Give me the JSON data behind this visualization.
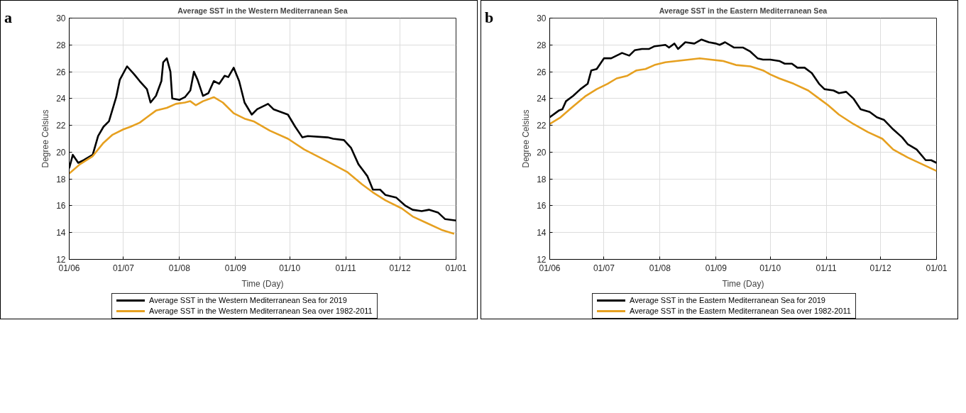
{
  "chart_data": [
    {
      "type": "line",
      "title": "Average SST in the Western Mediterranean Sea",
      "xlabel": "Time (Day)",
      "ylabel": "Degree Celsius",
      "annotations": [
        "a"
      ],
      "xlim": [
        "2019-06-01",
        "2020-01-01"
      ],
      "xticks": [
        {
          "value": "2019-06-01",
          "label": "01/06"
        },
        {
          "value": "2019-07-01",
          "label": "01/07"
        },
        {
          "value": "2019-08-01",
          "label": "01/08"
        },
        {
          "value": "2019-09-01",
          "label": "01/09"
        },
        {
          "value": "2019-10-01",
          "label": "01/10"
        },
        {
          "value": "2019-11-01",
          "label": "01/11"
        },
        {
          "value": "2019-12-01",
          "label": "01/12"
        },
        {
          "value": "2020-01-01",
          "label": "01/01"
        }
      ],
      "ylim": [
        12,
        30
      ],
      "yticks": [
        12,
        14,
        16,
        18,
        20,
        22,
        24,
        26,
        28,
        30
      ],
      "grid": true,
      "legend": "bottom",
      "line_style": "solid",
      "series": [
        {
          "name": "Average SST in the Western Mediterranean Sea for 2019",
          "color": "#000000",
          "x": [
            "2019-06-01",
            "2019-06-03",
            "2019-06-06",
            "2019-06-09",
            "2019-06-14",
            "2019-06-17",
            "2019-06-20",
            "2019-06-23",
            "2019-06-25",
            "2019-06-27",
            "2019-06-29",
            "2019-07-03",
            "2019-07-07",
            "2019-07-10",
            "2019-07-14",
            "2019-07-16",
            "2019-07-19",
            "2019-07-22",
            "2019-07-23",
            "2019-07-25",
            "2019-07-27",
            "2019-07-28",
            "2019-08-01",
            "2019-08-04",
            "2019-08-07",
            "2019-08-09",
            "2019-08-11",
            "2019-08-14",
            "2019-08-17",
            "2019-08-20",
            "2019-08-23",
            "2019-08-26",
            "2019-08-28",
            "2019-08-31",
            "2019-09-03",
            "2019-09-06",
            "2019-09-10",
            "2019-09-13",
            "2019-09-19",
            "2019-09-22",
            "2019-09-30",
            "2019-10-04",
            "2019-10-08",
            "2019-10-11",
            "2019-10-22",
            "2019-10-25",
            "2019-10-31",
            "2019-11-04",
            "2019-11-08",
            "2019-11-13",
            "2019-11-16",
            "2019-11-20",
            "2019-11-23",
            "2019-11-29",
            "2019-12-04",
            "2019-12-08",
            "2019-12-13",
            "2019-12-17",
            "2019-12-22",
            "2019-12-26",
            "2020-01-01"
          ],
          "values": [
            18.8,
            19.8,
            19.2,
            19.4,
            19.8,
            21.2,
            21.9,
            22.3,
            23.2,
            24.1,
            25.4,
            26.4,
            25.8,
            25.3,
            24.7,
            23.7,
            24.2,
            25.3,
            26.7,
            27.0,
            26.0,
            24.0,
            23.9,
            24.1,
            24.6,
            26.0,
            25.4,
            24.2,
            24.4,
            25.3,
            25.1,
            25.7,
            25.6,
            26.3,
            25.3,
            23.7,
            22.8,
            23.2,
            23.6,
            23.2,
            22.8,
            21.9,
            21.1,
            21.2,
            21.1,
            21.0,
            20.9,
            20.3,
            19.1,
            18.2,
            17.2,
            17.2,
            16.8,
            16.6,
            16.0,
            15.7,
            15.6,
            15.7,
            15.5,
            15.0,
            14.9
          ]
        },
        {
          "name": "Average SST in the Western Mediterranean Sea over 1982-2011",
          "color": "#e6a020",
          "x": [
            "2019-06-01",
            "2019-06-07",
            "2019-06-14",
            "2019-06-20",
            "2019-06-25",
            "2019-07-01",
            "2019-07-05",
            "2019-07-10",
            "2019-07-14",
            "2019-07-19",
            "2019-07-25",
            "2019-07-30",
            "2019-08-04",
            "2019-08-07",
            "2019-08-10",
            "2019-08-14",
            "2019-08-20",
            "2019-08-25",
            "2019-08-31",
            "2019-09-06",
            "2019-09-11",
            "2019-09-20",
            "2019-09-30",
            "2019-10-09",
            "2019-10-22",
            "2019-11-02",
            "2019-11-10",
            "2019-11-16",
            "2019-11-23",
            "2019-12-02",
            "2019-12-08",
            "2019-12-16",
            "2019-12-24",
            "2019-12-31"
          ],
          "values": [
            18.4,
            19.1,
            19.7,
            20.7,
            21.3,
            21.7,
            21.9,
            22.2,
            22.6,
            23.1,
            23.3,
            23.6,
            23.7,
            23.8,
            23.5,
            23.8,
            24.1,
            23.7,
            22.9,
            22.5,
            22.3,
            21.6,
            21.0,
            20.2,
            19.3,
            18.5,
            17.6,
            17.0,
            16.4,
            15.8,
            15.2,
            14.7,
            14.2,
            13.9
          ]
        }
      ]
    },
    {
      "type": "line",
      "title": "Average SST in the Eastern Mediterranean Sea",
      "xlabel": "Time (Day)",
      "ylabel": "Degree Celsius",
      "annotations": [
        "b"
      ],
      "xlim": [
        "2019-06-01",
        "2020-01-01"
      ],
      "xticks": [
        {
          "value": "2019-06-01",
          "label": "01/06"
        },
        {
          "value": "2019-07-01",
          "label": "01/07"
        },
        {
          "value": "2019-08-01",
          "label": "01/08"
        },
        {
          "value": "2019-09-01",
          "label": "01/09"
        },
        {
          "value": "2019-10-01",
          "label": "01/10"
        },
        {
          "value": "2019-11-01",
          "label": "01/11"
        },
        {
          "value": "2019-12-01",
          "label": "01/12"
        },
        {
          "value": "2020-01-01",
          "label": "01/01"
        }
      ],
      "ylim": [
        12,
        30
      ],
      "yticks": [
        12,
        14,
        16,
        18,
        20,
        22,
        24,
        26,
        28,
        30
      ],
      "grid": true,
      "legend": "bottom",
      "line_style": "solid",
      "series": [
        {
          "name": "Average SST in the Eastern Mediterranean Sea for 2019",
          "color": "#000000",
          "x": [
            "2019-06-01",
            "2019-06-06",
            "2019-06-08",
            "2019-06-10",
            "2019-06-14",
            "2019-06-18",
            "2019-06-22",
            "2019-06-24",
            "2019-06-27",
            "2019-07-01",
            "2019-07-05",
            "2019-07-08",
            "2019-07-11",
            "2019-07-15",
            "2019-07-18",
            "2019-07-22",
            "2019-07-26",
            "2019-07-29",
            "2019-08-04",
            "2019-08-06",
            "2019-08-09",
            "2019-08-11",
            "2019-08-15",
            "2019-08-20",
            "2019-08-24",
            "2019-08-28",
            "2019-09-01",
            "2019-09-03",
            "2019-09-06",
            "2019-09-11",
            "2019-09-16",
            "2019-09-20",
            "2019-09-24",
            "2019-09-27",
            "2019-10-01",
            "2019-10-06",
            "2019-10-09",
            "2019-10-13",
            "2019-10-16",
            "2019-10-20",
            "2019-10-24",
            "2019-10-28",
            "2019-10-31",
            "2019-11-05",
            "2019-11-08",
            "2019-11-12",
            "2019-11-16",
            "2019-11-20",
            "2019-11-25",
            "2019-11-29",
            "2019-12-03",
            "2019-12-08",
            "2019-12-13",
            "2019-12-16",
            "2019-12-21",
            "2019-12-26",
            "2019-12-29",
            "2020-01-01"
          ],
          "values": [
            22.6,
            23.1,
            23.2,
            23.8,
            24.2,
            24.7,
            25.1,
            26.1,
            26.2,
            27.0,
            27.0,
            27.2,
            27.4,
            27.2,
            27.6,
            27.7,
            27.7,
            27.9,
            28.0,
            27.8,
            28.1,
            27.7,
            28.2,
            28.1,
            28.4,
            28.2,
            28.1,
            28.0,
            28.2,
            27.8,
            27.8,
            27.5,
            27.0,
            26.9,
            26.9,
            26.8,
            26.6,
            26.6,
            26.3,
            26.3,
            25.9,
            25.1,
            24.7,
            24.6,
            24.4,
            24.5,
            24.0,
            23.2,
            23.0,
            22.6,
            22.4,
            21.7,
            21.1,
            20.6,
            20.2,
            19.4,
            19.4,
            19.2
          ]
        },
        {
          "name": "Average SST in the Eastern Mediterranean Sea over 1982-2011",
          "color": "#e6a020",
          "x": [
            "2019-06-01",
            "2019-06-07",
            "2019-06-13",
            "2019-06-21",
            "2019-06-27",
            "2019-07-03",
            "2019-07-08",
            "2019-07-14",
            "2019-07-19",
            "2019-07-24",
            "2019-07-29",
            "2019-08-04",
            "2019-08-10",
            "2019-08-17",
            "2019-08-23",
            "2019-08-29",
            "2019-09-05",
            "2019-09-12",
            "2019-09-20",
            "2019-09-27",
            "2019-10-01",
            "2019-10-06",
            "2019-10-14",
            "2019-10-22",
            "2019-10-28",
            "2019-11-02",
            "2019-11-08",
            "2019-11-16",
            "2019-11-24",
            "2019-12-02",
            "2019-12-08",
            "2019-12-16",
            "2019-12-24",
            "2020-01-01"
          ],
          "values": [
            22.1,
            22.6,
            23.3,
            24.2,
            24.7,
            25.1,
            25.5,
            25.7,
            26.1,
            26.2,
            26.5,
            26.7,
            26.8,
            26.9,
            27.0,
            26.9,
            26.8,
            26.5,
            26.4,
            26.1,
            25.8,
            25.5,
            25.1,
            24.6,
            24.0,
            23.5,
            22.8,
            22.1,
            21.5,
            21.0,
            20.2,
            19.6,
            19.1,
            18.6
          ]
        }
      ]
    }
  ]
}
